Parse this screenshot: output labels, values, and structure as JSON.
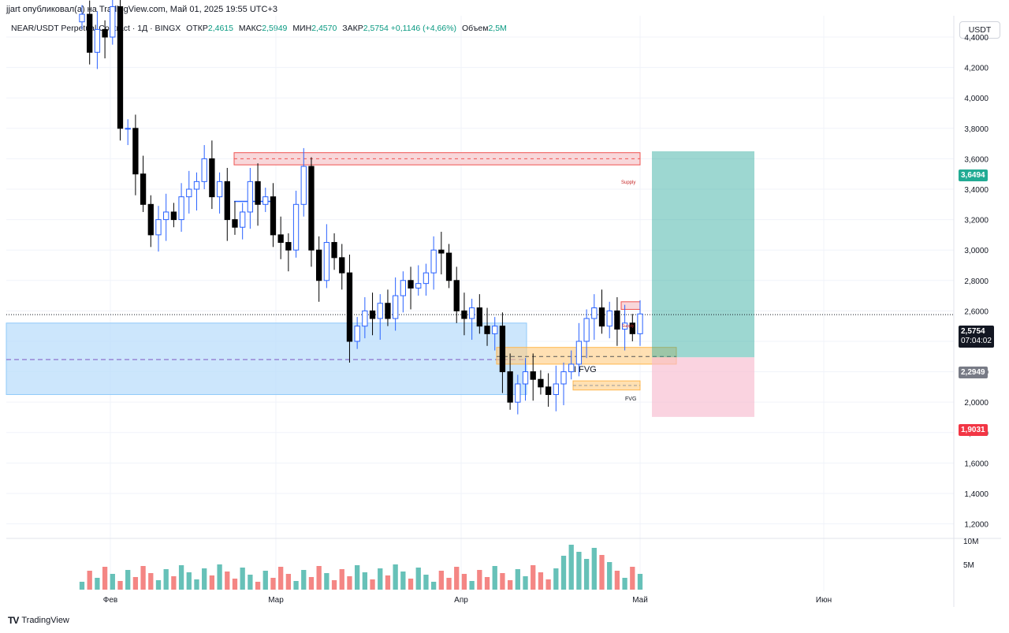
{
  "header": {
    "publisher": "jjart опубликовал(а) на TradingView.com, Май 01, 2025 19:55 UTC+3",
    "symbol": "NEAR/USDT Perpetual Contract · 1Д · BINGX",
    "open_label": "ОТКР",
    "open_value": "2,4615",
    "high_label": "МАКС",
    "high_value": "2,5949",
    "low_label": "МИН",
    "low_value": "2,4570",
    "close_label": "ЗАКР",
    "close_value": "2,5754",
    "change": "+0,1146 (+4,66%)",
    "volume_label": "Объем",
    "volume_value": "2,5M",
    "currency": "USDT"
  },
  "badges": {
    "target": "3,6494",
    "current_price": "2,5754",
    "countdown": "07:04:02",
    "entry": "2,2949",
    "stop": "1,9031"
  },
  "footer": {
    "brand": "TradingView",
    "logo": "TV"
  },
  "zone_labels": {
    "supply_top": "Supply",
    "supply_small": "Supply",
    "ifvg": "I FVG",
    "fvg": "FVG"
  },
  "colors": {
    "up": "#ffffff",
    "up_border": "#2962ff",
    "down": "#000000",
    "vol_up": "#26a69a",
    "vol_down": "#ef5350",
    "blue_zone": "#bbdefb",
    "supply": "#f8d7da",
    "fvg": "#ffe0b2",
    "tp": "#26a69a",
    "sl": "#f8bbd0"
  },
  "chart_data": {
    "type": "candlestick",
    "y_ticks": [
      "4,4000",
      "4,2000",
      "4,0000",
      "3,8000",
      "3,6000",
      "3,4000",
      "3,2000",
      "3,0000",
      "2,8000",
      "2,6000",
      "2,4000",
      "2,2000",
      "2,0000",
      "1,8000",
      "1,6000",
      "1,4000",
      "1,2000"
    ],
    "ylim": [
      1.2,
      4.45
    ],
    "x_labels": [
      "Фев",
      "Мар",
      "Апр",
      "Май",
      "Июн"
    ],
    "volume_ticks": [
      "10M",
      "5M"
    ],
    "closes": [
      4.55,
      4.3,
      4.45,
      4.4,
      4.6,
      3.8,
      3.8,
      3.5,
      3.3,
      3.1,
      3.2,
      3.25,
      3.2,
      3.35,
      3.4,
      3.45,
      3.6,
      3.35,
      3.45,
      3.2,
      3.15,
      3.25,
      3.45,
      3.3,
      3.35,
      3.1,
      3.05,
      3.0,
      3.3,
      3.55,
      3.0,
      2.8,
      3.05,
      2.95,
      2.85,
      2.4,
      2.5,
      2.6,
      2.55,
      2.65,
      2.55,
      2.7,
      2.8,
      2.75,
      2.78,
      2.85,
      3.0,
      2.98,
      2.8,
      2.6,
      2.55,
      2.62,
      2.5,
      2.45,
      2.5,
      2.2,
      2.0,
      2.12,
      2.2,
      2.15,
      2.1,
      2.05,
      2.12,
      2.2,
      2.25,
      2.4,
      2.55,
      2.62,
      2.5,
      2.6,
      2.48,
      2.52,
      2.45,
      2.58
    ],
    "levels": {
      "supply": [
        3.56,
        3.64
      ],
      "blue_zone": [
        2.05,
        2.52
      ],
      "blue_mid": 2.28,
      "ifvg": [
        2.25,
        2.36
      ],
      "fvg": [
        2.08,
        2.14
      ],
      "target": 3.6494,
      "entry": 2.2949,
      "stop": 1.9031,
      "current": 2.5754
    },
    "volume_max": 12
  }
}
